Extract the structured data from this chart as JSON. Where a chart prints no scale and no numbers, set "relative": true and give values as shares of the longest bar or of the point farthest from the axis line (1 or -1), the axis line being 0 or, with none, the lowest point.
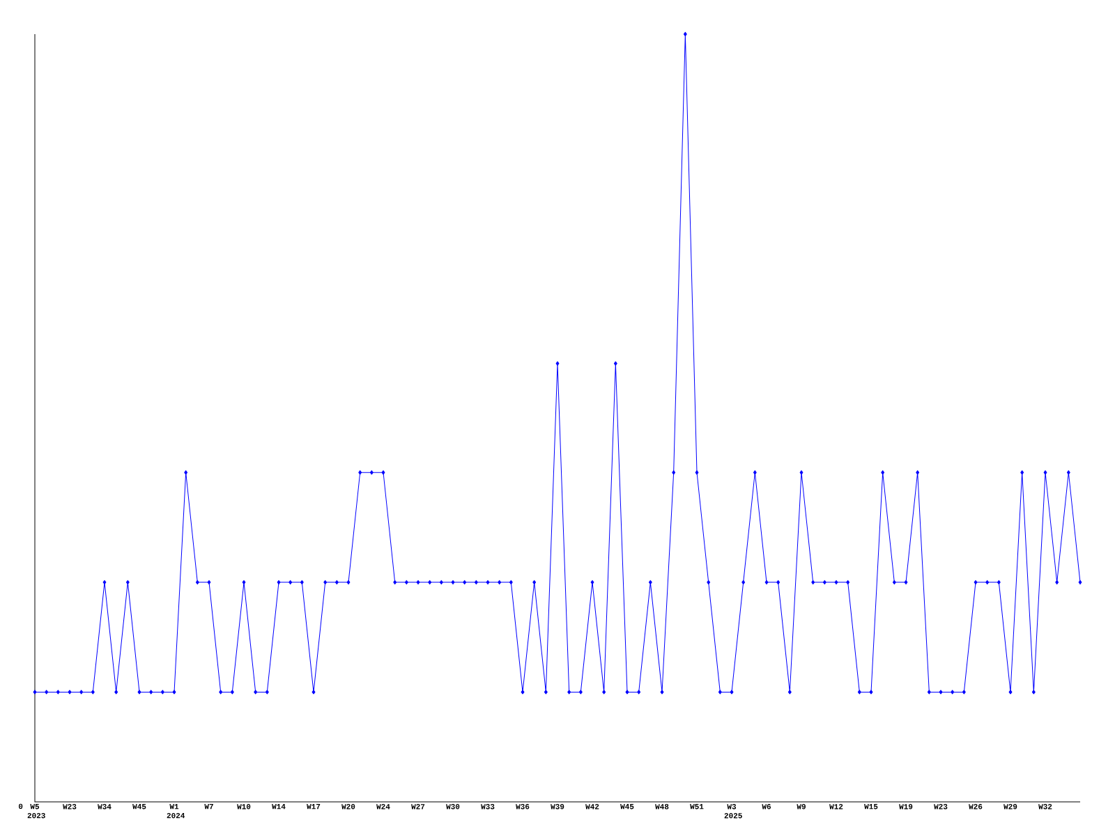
{
  "chart_data": {
    "type": "line",
    "relative": true,
    "color": "#0000ff",
    "marker": "diamond",
    "line_style": "solid",
    "annotations": [
      "0"
    ],
    "categories": [
      "W5 2023",
      null,
      null,
      "W23",
      null,
      null,
      "W34",
      null,
      null,
      "W45",
      null,
      null,
      "W1 2024",
      null,
      null,
      "W7",
      null,
      null,
      "W10",
      null,
      null,
      "W14",
      null,
      null,
      "W17",
      null,
      null,
      "W20",
      null,
      null,
      "W24",
      null,
      null,
      "W27",
      null,
      null,
      "W30",
      null,
      null,
      "W33",
      null,
      null,
      "W36",
      null,
      null,
      "W39",
      null,
      null,
      "W42",
      null,
      null,
      "W45",
      null,
      null,
      "W48",
      null,
      null,
      "W51",
      null,
      null,
      "W3 2025",
      null,
      null,
      "W6",
      null,
      null,
      "W9",
      null,
      null,
      "W12",
      null,
      null,
      "W15",
      null,
      null,
      "W19",
      null,
      null,
      "W23",
      null,
      null,
      "W26",
      null,
      null,
      "W29",
      null,
      null,
      "W32",
      null,
      null,
      null
    ],
    "values": [
      0.143,
      0.143,
      0.143,
      0.143,
      0.143,
      0.143,
      0.286,
      0.143,
      0.286,
      0.143,
      0.143,
      0.143,
      0.143,
      0.429,
      0.286,
      0.286,
      0.143,
      0.143,
      0.286,
      0.143,
      0.143,
      0.286,
      0.286,
      0.286,
      0.143,
      0.286,
      0.286,
      0.286,
      0.429,
      0.429,
      0.429,
      0.286,
      0.286,
      0.286,
      0.286,
      0.286,
      0.286,
      0.286,
      0.286,
      0.286,
      0.286,
      0.286,
      0.143,
      0.286,
      0.143,
      0.571,
      0.143,
      0.143,
      0.286,
      0.143,
      0.571,
      0.143,
      0.143,
      0.286,
      0.143,
      0.429,
      1,
      0.429,
      0.286,
      0.143,
      0.143,
      0.286,
      0.429,
      0.286,
      0.286,
      0.143,
      0.429,
      0.286,
      0.286,
      0.286,
      0.286,
      0.143,
      0.143,
      0.429,
      0.286,
      0.286,
      0.429,
      0.143,
      0.143,
      0.143,
      0.143,
      0.286,
      0.286,
      0.286,
      0.143,
      0.429,
      0.143,
      0.429,
      0.286,
      0.429,
      0.286
    ]
  }
}
